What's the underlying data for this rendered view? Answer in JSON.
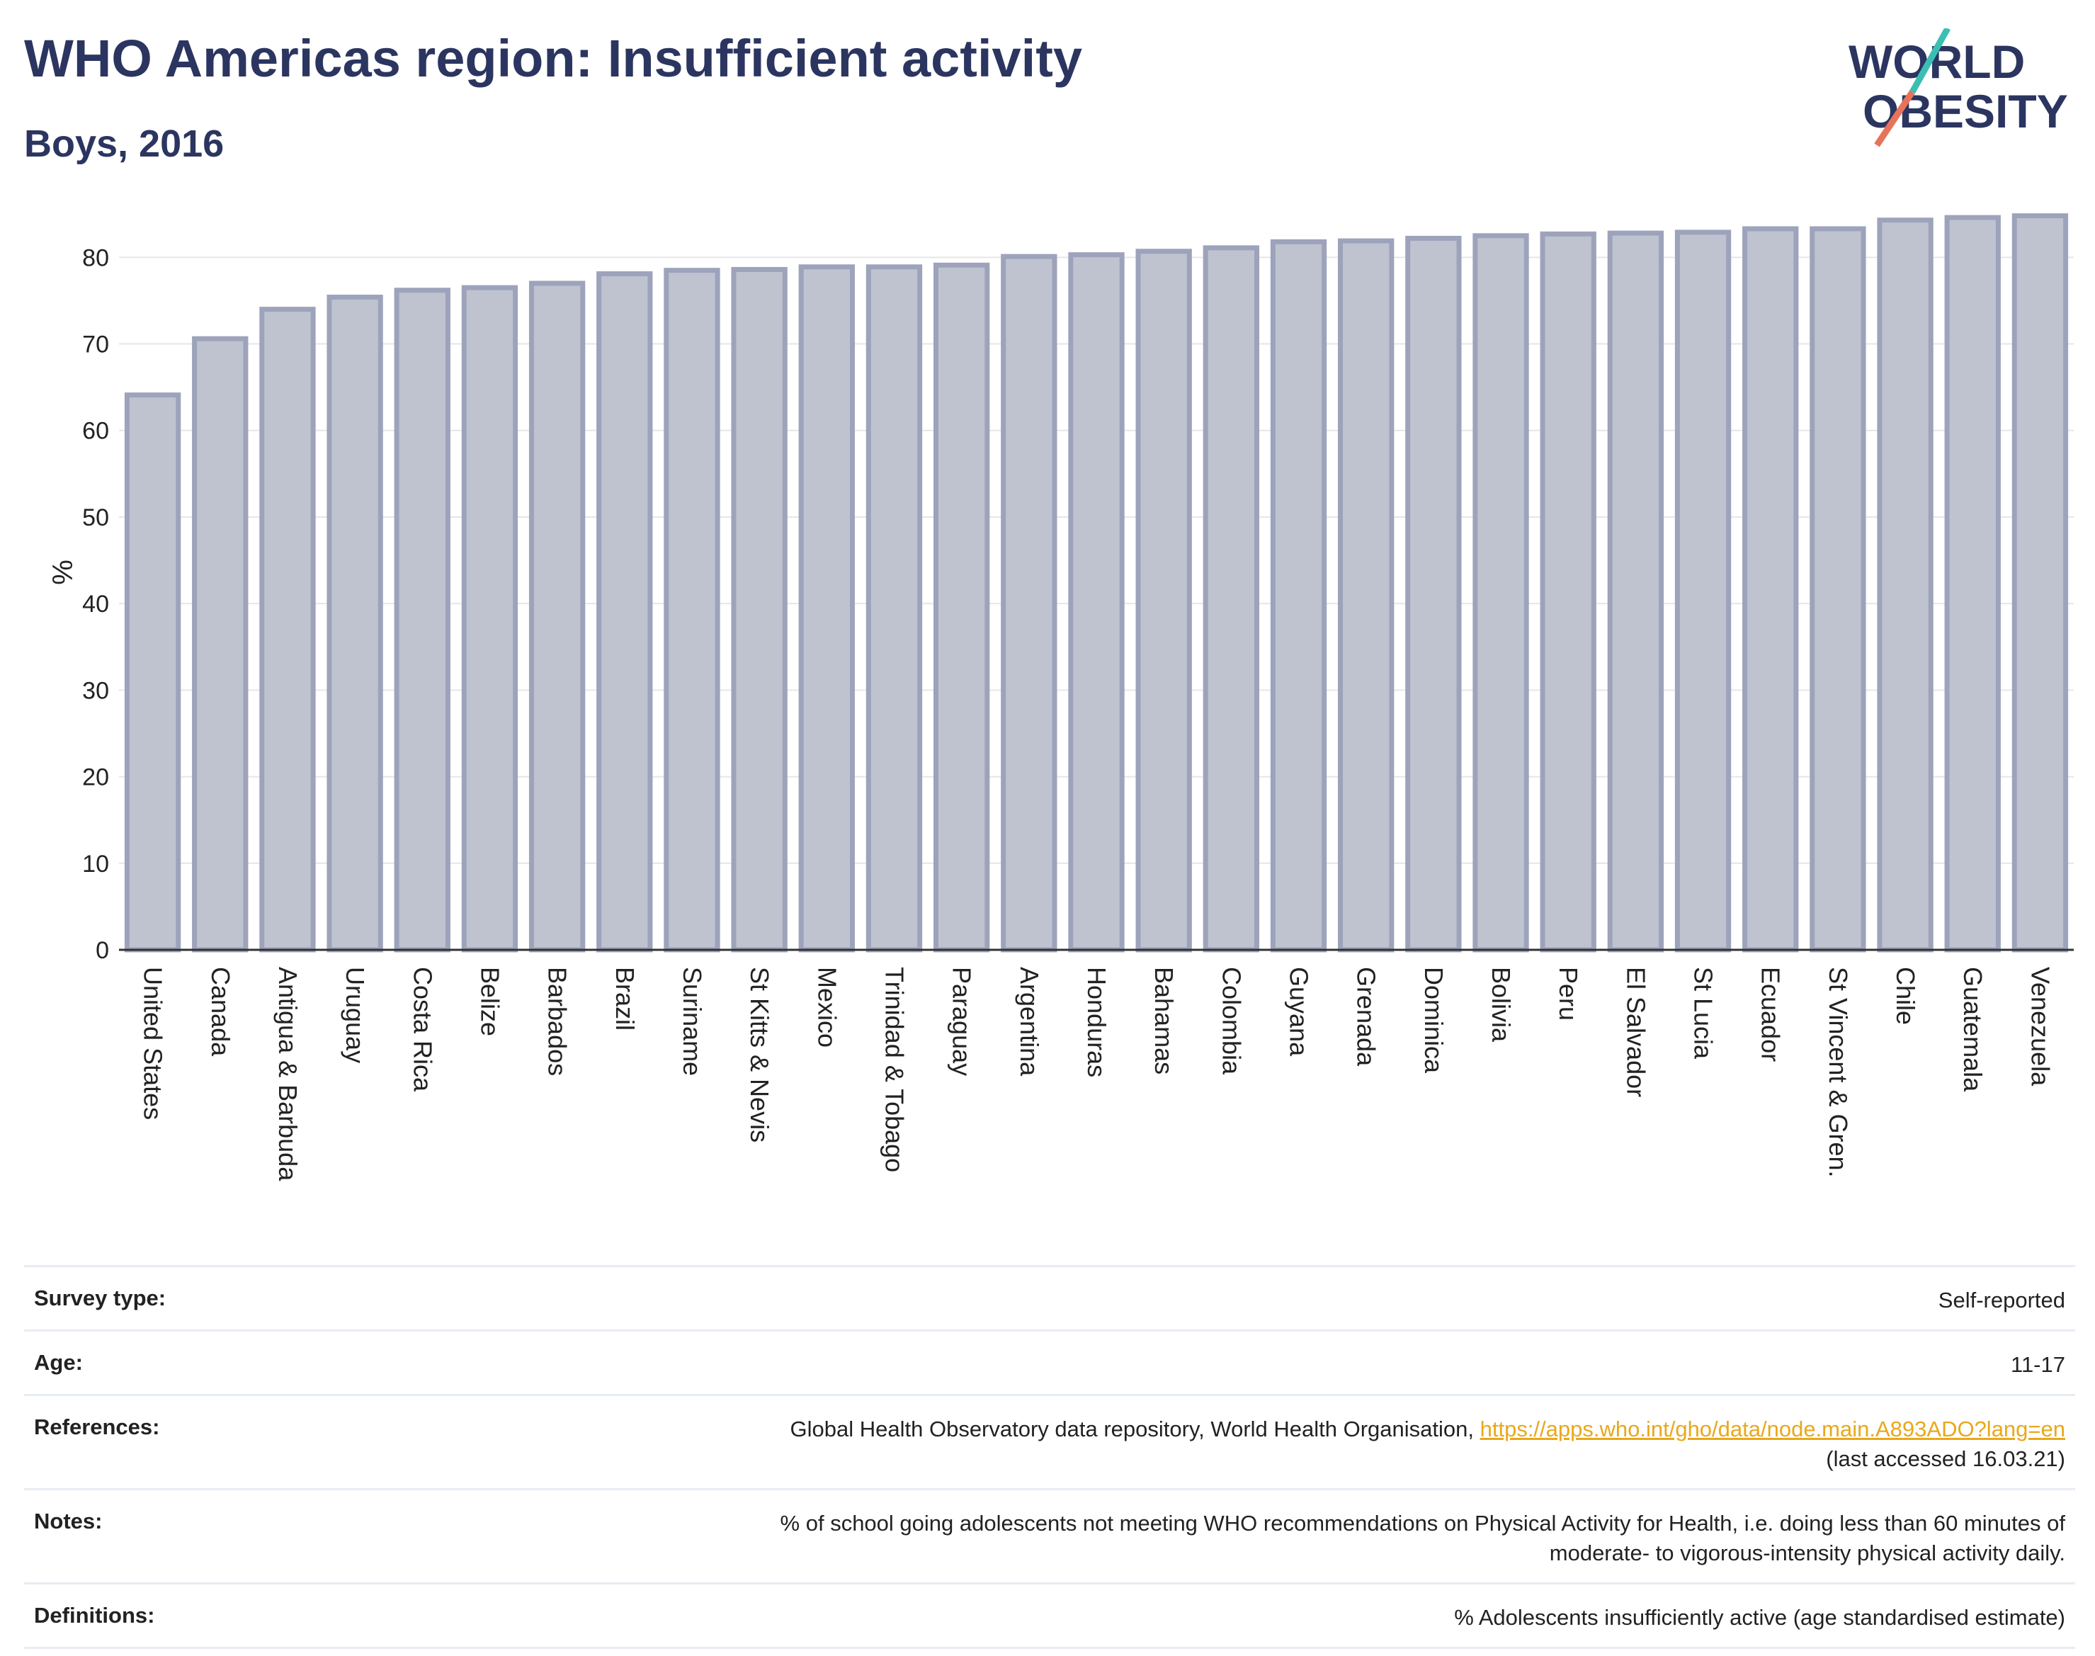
{
  "header": {
    "title": "WHO Americas region: Insufficient activity",
    "subtitle": "Boys, 2016"
  },
  "logo": {
    "line1": "WORLD",
    "line2": "OBESITY",
    "accent_teal": "#3bbfb4",
    "accent_coral": "#e8735b",
    "text_color": "#2b3560"
  },
  "chart_data": {
    "type": "bar",
    "ylabel": "%",
    "ylim": [
      0,
      86
    ],
    "yticks": [
      0,
      10,
      20,
      30,
      40,
      50,
      60,
      70,
      80
    ],
    "grid": true,
    "bar_fill": "#bfc3d0",
    "bar_stroke": "#9da3bb",
    "categories": [
      "United States",
      "Canada",
      "Antigua & Barbuda",
      "Uruguay",
      "Costa Rica",
      "Belize",
      "Barbados",
      "Brazil",
      "Suriname",
      "St Kitts & Nevis",
      "Mexico",
      "Trinidad & Tobago",
      "Paraguay",
      "Argentina",
      "Honduras",
      "Bahamas",
      "Colombia",
      "Guyana",
      "Grenada",
      "Dominica",
      "Bolivia",
      "Peru",
      "El Salvador",
      "St Lucia",
      "Ecuador",
      "St Vincent & Gren.",
      "Chile",
      "Guatemala",
      "Venezuela"
    ],
    "values": [
      64.1,
      70.6,
      74.0,
      75.4,
      76.2,
      76.5,
      77.0,
      78.1,
      78.5,
      78.6,
      78.9,
      78.9,
      79.1,
      80.1,
      80.3,
      80.7,
      81.1,
      81.8,
      81.9,
      82.2,
      82.5,
      82.7,
      82.8,
      82.9,
      83.3,
      83.3,
      84.3,
      84.6,
      84.8
    ]
  },
  "info": {
    "survey_type": {
      "label": "Survey type:",
      "value": "Self-reported"
    },
    "age": {
      "label": "Age:",
      "value": "11-17"
    },
    "references": {
      "label": "References:",
      "value_prefix": "Global Health Observatory data repository, World Health Organisation, ",
      "link": "https://apps.who.int/gho/data/node.main.A893ADO?lang=en",
      "value_suffix": "(last accessed 16.03.21)"
    },
    "notes": {
      "label": "Notes:",
      "line1": "% of school going adolescents not meeting WHO recommendations on Physical Activity for Health, i.e. doing less than 60 minutes of",
      "line2": "moderate- to vigorous-intensity physical activity daily."
    },
    "definitions": {
      "label": "Definitions:",
      "value": "% Adolescents insufficiently active (age standardised estimate)"
    }
  }
}
